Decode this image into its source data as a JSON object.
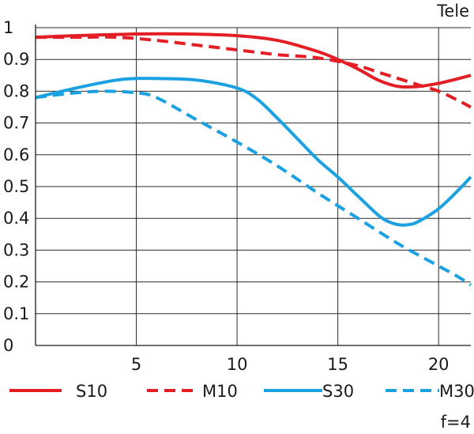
{
  "chart_data": {
    "type": "line",
    "title": "Tele",
    "note": "f=4",
    "xlabel": "",
    "ylabel": "",
    "xlim": [
      0,
      21.6
    ],
    "ylim": [
      0,
      1
    ],
    "x_ticks": [
      5,
      10,
      15,
      20
    ],
    "x_tick_labels": [
      "5",
      "10",
      "15",
      "20"
    ],
    "y_ticks": [
      0,
      0.1,
      0.2,
      0.3,
      0.4,
      0.5,
      0.6,
      0.7,
      0.8,
      0.9,
      1
    ],
    "y_tick_labels": [
      "0",
      "0.1",
      "0.2",
      "0.3",
      "0.4",
      "0.5",
      "0.6",
      "0.7",
      "0.8",
      "0.9",
      "1"
    ],
    "grid": true,
    "legend_position": "bottom",
    "series": [
      {
        "name": "S10",
        "color": "#e31e24",
        "dash": "solid",
        "x": [
          0,
          2,
          5,
          7.5,
          10,
          12,
          14,
          15,
          16,
          17,
          18,
          19,
          20,
          21,
          21.6
        ],
        "y": [
          0.97,
          0.975,
          0.98,
          0.98,
          0.975,
          0.96,
          0.925,
          0.9,
          0.87,
          0.835,
          0.815,
          0.815,
          0.825,
          0.84,
          0.85
        ]
      },
      {
        "name": "M10",
        "color": "#e31e24",
        "dash": "dashed",
        "x": [
          0,
          2,
          4,
          6,
          8,
          10,
          12,
          14,
          16,
          17,
          18,
          19,
          20,
          21,
          21.6
        ],
        "y": [
          0.97,
          0.97,
          0.97,
          0.96,
          0.945,
          0.93,
          0.915,
          0.905,
          0.88,
          0.86,
          0.84,
          0.82,
          0.8,
          0.77,
          0.75
        ]
      },
      {
        "name": "S30",
        "color": "#1ba1e2",
        "dash": "solid",
        "x": [
          0,
          2,
          4,
          5,
          6,
          8,
          10,
          11,
          12,
          13,
          14,
          15,
          16,
          17,
          17.5,
          18,
          18.5,
          19,
          20,
          21,
          21.6
        ],
        "y": [
          0.78,
          0.81,
          0.835,
          0.84,
          0.84,
          0.835,
          0.81,
          0.775,
          0.715,
          0.65,
          0.585,
          0.53,
          0.47,
          0.41,
          0.39,
          0.38,
          0.38,
          0.39,
          0.43,
          0.49,
          0.53
        ]
      },
      {
        "name": "M30",
        "color": "#1ba1e2",
        "dash": "dashed",
        "x": [
          0,
          2,
          3.5,
          5,
          6,
          8,
          10,
          12,
          14,
          16,
          18,
          20,
          21,
          21.6
        ],
        "y": [
          0.78,
          0.795,
          0.8,
          0.795,
          0.78,
          0.71,
          0.64,
          0.565,
          0.48,
          0.4,
          0.32,
          0.25,
          0.215,
          0.19
        ]
      }
    ]
  }
}
